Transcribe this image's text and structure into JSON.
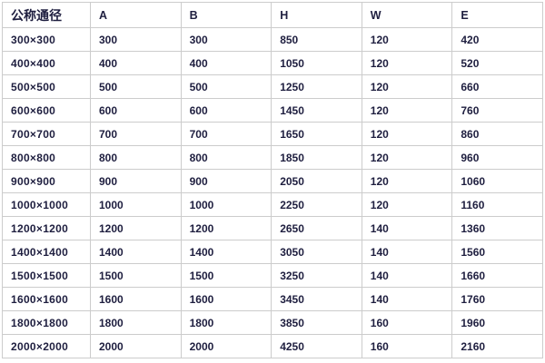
{
  "page": {
    "background_color": "#ffffff",
    "text_color": "#1e1e3f",
    "border_color": "#cccccc"
  },
  "table": {
    "headers": [
      "公称通径",
      "A",
      "B",
      "H",
      "W",
      "E"
    ],
    "rows": [
      [
        "300×300",
        "300",
        "300",
        "850",
        "120",
        "420"
      ],
      [
        "400×400",
        "400",
        "400",
        "1050",
        "120",
        "520"
      ],
      [
        "500×500",
        "500",
        "500",
        "1250",
        "120",
        "660"
      ],
      [
        "600×600",
        "600",
        "600",
        "1450",
        "120",
        "760"
      ],
      [
        "700×700",
        "700",
        "700",
        "1650",
        "120",
        "860"
      ],
      [
        "800×800",
        "800",
        "800",
        "1850",
        "120",
        "960"
      ],
      [
        "900×900",
        "900",
        "900",
        "2050",
        "120",
        "1060"
      ],
      [
        "1000×1000",
        "1000",
        "1000",
        "2250",
        "120",
        "1160"
      ],
      [
        "1200×1200",
        "1200",
        "1200",
        "2650",
        "140",
        "1360"
      ],
      [
        "1400×1400",
        "1400",
        "1400",
        "3050",
        "140",
        "1560"
      ],
      [
        "1500×1500",
        "1500",
        "1500",
        "3250",
        "140",
        "1660"
      ],
      [
        "1600×1600",
        "1600",
        "1600",
        "3450",
        "140",
        "1760"
      ],
      [
        "1800×1800",
        "1800",
        "1800",
        "3850",
        "160",
        "1960"
      ],
      [
        "2000×2000",
        "2000",
        "2000",
        "4250",
        "160",
        "2160"
      ]
    ]
  },
  "chart_data": {
    "type": "table",
    "title": "",
    "columns": [
      "公称通径",
      "A",
      "B",
      "H",
      "W",
      "E"
    ],
    "rows": [
      [
        "300×300",
        300,
        300,
        850,
        120,
        420
      ],
      [
        "400×400",
        400,
        400,
        1050,
        120,
        520
      ],
      [
        "500×500",
        500,
        500,
        1250,
        120,
        660
      ],
      [
        "600×600",
        600,
        600,
        1450,
        120,
        760
      ],
      [
        "700×700",
        700,
        700,
        1650,
        120,
        860
      ],
      [
        "800×800",
        800,
        800,
        1850,
        120,
        960
      ],
      [
        "900×900",
        900,
        900,
        2050,
        120,
        1060
      ],
      [
        "1000×1000",
        1000,
        1000,
        2250,
        120,
        1160
      ],
      [
        "1200×1200",
        1200,
        1200,
        2650,
        140,
        1360
      ],
      [
        "1400×1400",
        1400,
        1400,
        3050,
        140,
        1560
      ],
      [
        "1500×1500",
        1500,
        1500,
        3250,
        140,
        1660
      ],
      [
        "1600×1600",
        1600,
        1600,
        3450,
        140,
        1760
      ],
      [
        "1800×1800",
        1800,
        1800,
        3850,
        160,
        1960
      ],
      [
        "2000×2000",
        2000,
        2000,
        4250,
        160,
        2160
      ]
    ]
  }
}
